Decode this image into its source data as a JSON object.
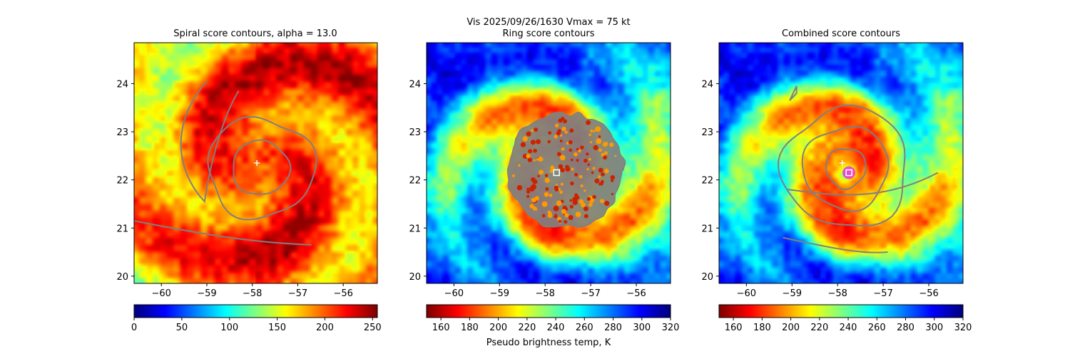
{
  "figure": {
    "suptitle": "Vis  2025/09/26/1630    Vmax = 75 kt",
    "colorbar_label": "Pseudo brightness temp, K"
  },
  "chart_data": [
    {
      "type": "heatmap",
      "title": "Spiral score contours, alpha = 13.0",
      "xlabel": "",
      "ylabel": "",
      "xlim": [
        -60.6,
        -55.25
      ],
      "ylim": [
        19.85,
        24.85
      ],
      "xticks": [
        -60,
        -59,
        -58,
        -57,
        -56
      ],
      "yticks": [
        20,
        21,
        22,
        23,
        24
      ],
      "colormap": "jet",
      "colorbar": {
        "range": [
          0,
          255
        ],
        "ticks": [
          0,
          50,
          100,
          150,
          200,
          250
        ]
      },
      "scene": "spiral",
      "contour_color": "#808080",
      "markers": [
        {
          "type": "plus",
          "x": -57.9,
          "y": 22.35,
          "color": "#ffffff"
        }
      ]
    },
    {
      "type": "heatmap",
      "title": "Ring score contours",
      "xlabel": "",
      "ylabel": "",
      "xlim": [
        -60.6,
        -55.25
      ],
      "ylim": [
        19.85,
        24.85
      ],
      "xticks": [
        -60,
        -59,
        -58,
        -57,
        -56
      ],
      "yticks": [
        20,
        21,
        22,
        23,
        24
      ],
      "colormap": "jet_r",
      "colorbar": {
        "range": [
          150,
          320
        ],
        "ticks": [
          160,
          180,
          200,
          220,
          240,
          260,
          280,
          300,
          320
        ]
      },
      "scene": "ring",
      "contour_color": "#808080",
      "markers": [
        {
          "type": "square",
          "x": -57.75,
          "y": 22.15,
          "color": "#ffffff"
        }
      ]
    },
    {
      "type": "heatmap",
      "title": "Combined score contours",
      "xlabel": "",
      "ylabel": "",
      "xlim": [
        -60.6,
        -55.25
      ],
      "ylim": [
        19.85,
        24.85
      ],
      "xticks": [
        -60,
        -59,
        -58,
        -57,
        -56
      ],
      "yticks": [
        20,
        21,
        22,
        23,
        24
      ],
      "colormap": "jet_r",
      "colorbar": {
        "range": [
          150,
          320
        ],
        "ticks": [
          160,
          180,
          200,
          220,
          240,
          260,
          280,
          300,
          320
        ]
      },
      "scene": "combined",
      "contour_color": "#808080",
      "markers": [
        {
          "type": "plus",
          "x": -57.9,
          "y": 22.35,
          "color": "#ffffff"
        },
        {
          "type": "square",
          "x": -57.75,
          "y": 22.15,
          "color": "#ffffff"
        }
      ]
    }
  ]
}
